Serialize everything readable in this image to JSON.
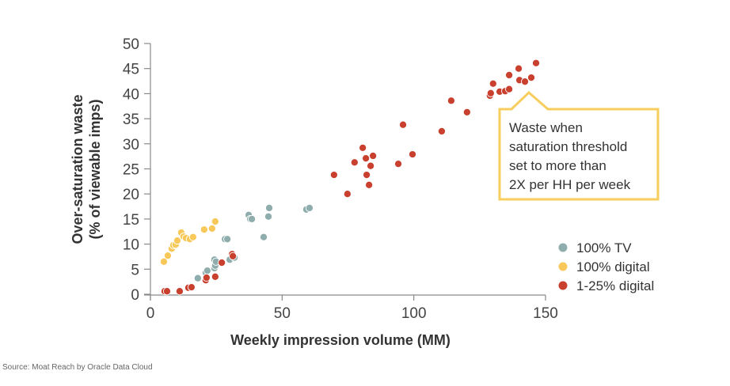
{
  "chart_data": {
    "type": "scatter",
    "title": "",
    "xlabel": "Weekly impression volume (MM)",
    "ylabel": [
      "Over-saturation waste",
      "(% of viewable imps)"
    ],
    "xlim": [
      0,
      150
    ],
    "ylim": [
      0,
      50
    ],
    "xticks": [
      0,
      50,
      100,
      150
    ],
    "yticks": [
      0,
      5,
      10,
      15,
      20,
      25,
      30,
      35,
      40,
      45,
      50
    ],
    "grid": false,
    "legend_position": "bottom-right",
    "series": [
      {
        "name": "100% TV",
        "color": "#8fadad",
        "points": [
          [
            18.0,
            3.2
          ],
          [
            21.0,
            4.3
          ],
          [
            21.6,
            4.7
          ],
          [
            24.3,
            5.2
          ],
          [
            24.6,
            5.7
          ],
          [
            24.3,
            6.9
          ],
          [
            24.9,
            6.5
          ],
          [
            30.1,
            6.9
          ],
          [
            31.9,
            7.3
          ],
          [
            28.3,
            11.0
          ],
          [
            29.2,
            11.0
          ],
          [
            37.3,
            15.8
          ],
          [
            37.9,
            15.0
          ],
          [
            38.5,
            15.0
          ],
          [
            45.1,
            17.2
          ],
          [
            44.8,
            15.5
          ],
          [
            43.0,
            11.4
          ],
          [
            59.2,
            16.9
          ],
          [
            60.4,
            17.2
          ]
        ]
      },
      {
        "name": "100% digital",
        "color": "#f8c95a",
        "points": [
          [
            5.1,
            6.5
          ],
          [
            6.6,
            7.7
          ],
          [
            8.1,
            9.1
          ],
          [
            8.7,
            9.8
          ],
          [
            9.6,
            9.9
          ],
          [
            10.2,
            10.7
          ],
          [
            11.7,
            12.3
          ],
          [
            12.6,
            11.5
          ],
          [
            13.5,
            11.2
          ],
          [
            15.0,
            11.0
          ],
          [
            16.2,
            11.4
          ],
          [
            20.4,
            12.9
          ],
          [
            23.4,
            13.1
          ],
          [
            24.6,
            14.5
          ]
        ]
      },
      {
        "name": "1-25% digital",
        "color": "#c9402e",
        "points": [
          [
            5.4,
            0.6
          ],
          [
            6.3,
            0.6
          ],
          [
            11.1,
            0.6
          ],
          [
            14.4,
            1.3
          ],
          [
            15.6,
            1.4
          ],
          [
            21.0,
            2.8
          ],
          [
            21.3,
            3.3
          ],
          [
            24.6,
            3.5
          ],
          [
            27.1,
            6.3
          ],
          [
            31.0,
            8.0
          ],
          [
            31.3,
            7.6
          ],
          [
            69.7,
            23.8
          ],
          [
            74.8,
            20.0
          ],
          [
            77.5,
            26.3
          ],
          [
            80.6,
            29.2
          ],
          [
            81.8,
            27.1
          ],
          [
            82.1,
            23.8
          ],
          [
            83.0,
            21.8
          ],
          [
            83.6,
            25.6
          ],
          [
            84.5,
            27.6
          ],
          [
            94.1,
            26.0
          ],
          [
            95.9,
            33.8
          ],
          [
            99.5,
            27.9
          ],
          [
            110.6,
            32.5
          ],
          [
            114.2,
            38.6
          ],
          [
            120.2,
            36.3
          ],
          [
            128.9,
            39.6
          ],
          [
            129.2,
            40.1
          ],
          [
            130.1,
            42.0
          ],
          [
            132.6,
            40.4
          ],
          [
            134.7,
            40.5
          ],
          [
            136.2,
            40.9
          ],
          [
            136.2,
            43.7
          ],
          [
            139.8,
            45.0
          ],
          [
            140.1,
            42.7
          ],
          [
            142.2,
            42.4
          ],
          [
            144.6,
            43.2
          ],
          [
            146.4,
            46.1
          ]
        ]
      }
    ],
    "annotations": [
      {
        "text_lines": [
          "Waste when",
          "saturation threshold",
          "set to more than",
          "2X per HH per week"
        ],
        "border_color": "#f7cd5e"
      }
    ]
  },
  "source": "Source: Moat Reach by Oracle Data Cloud"
}
